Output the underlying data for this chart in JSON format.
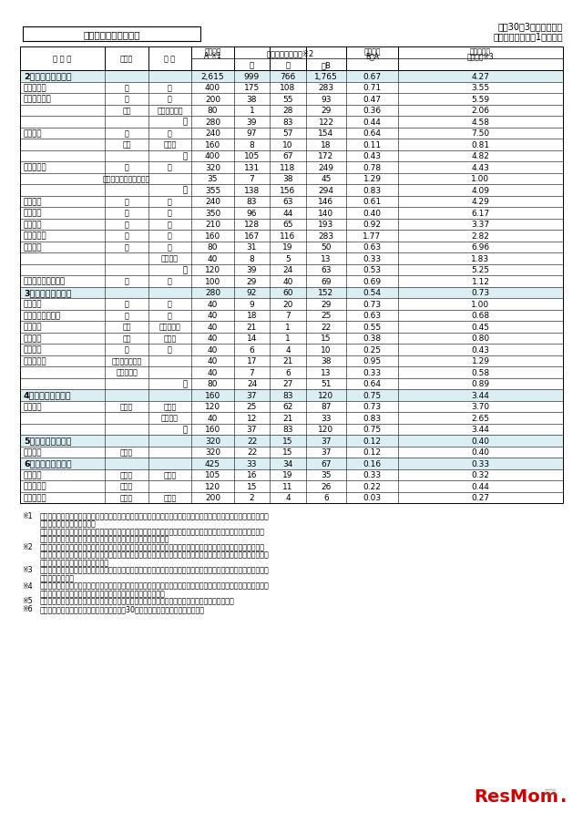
{
  "title_box": "学校・学科別志望状況",
  "top_right_line1": "平成30年3月卒業予定者",
  "top_right_line2": "第２次志望調査（1月実施）",
  "rows": [
    {
      "type": "section",
      "num": "2",
      "label": "私立高校全日制",
      "cols": [
        "2,615",
        "999",
        "766",
        "1,765",
        "0.67",
        "4.27"
      ]
    },
    {
      "type": "data",
      "school": "比　叡　山",
      "dept": "普",
      "course": "通",
      "cols": [
        "400",
        "175",
        "108",
        "283",
        "0.71",
        "3.55"
      ]
    },
    {
      "type": "data",
      "school": "滋賀短大附属",
      "dept": "普",
      "course": "通",
      "cols": [
        "200",
        "38",
        "55",
        "93",
        "0.47",
        "5.59"
      ]
    },
    {
      "type": "data",
      "school": "",
      "dept": "家庭",
      "course": "生活デザイン",
      "cols": [
        "80",
        "1",
        "28",
        "29",
        "0.36",
        "2.06"
      ]
    },
    {
      "type": "subtotal",
      "school": "",
      "dept": "",
      "course": "計",
      "cols": [
        "280",
        "39",
        "83",
        "122",
        "0.44",
        "4.58"
      ]
    },
    {
      "type": "data",
      "school": "近　　江",
      "dept": "普",
      "course": "通",
      "cols": [
        "240",
        "97",
        "57",
        "154",
        "0.64",
        "7.50"
      ]
    },
    {
      "type": "data",
      "school": "",
      "dept": "商業",
      "course": "商　業",
      "cols": [
        "160",
        "8",
        "10",
        "18",
        "0.11",
        "0.81"
      ]
    },
    {
      "type": "subtotal",
      "school": "",
      "dept": "",
      "course": "計",
      "cols": [
        "400",
        "105",
        "67",
        "172",
        "0.43",
        "4.82"
      ]
    },
    {
      "type": "data",
      "school": "近江兄弟社",
      "dept": "普",
      "course": "通",
      "cols": [
        "320",
        "131",
        "118",
        "249",
        "0.78",
        "4.43"
      ]
    },
    {
      "type": "data",
      "school": "",
      "dept": "国際コミュニケーション",
      "course": "",
      "cols": [
        "35",
        "7",
        "38",
        "45",
        "1.29",
        "1.00"
      ]
    },
    {
      "type": "subtotal",
      "school": "",
      "dept": "",
      "course": "計",
      "cols": [
        "355",
        "138",
        "156",
        "294",
        "0.83",
        "4.09"
      ]
    },
    {
      "type": "data",
      "school": "滋賀学園",
      "dept": "普",
      "course": "通",
      "cols": [
        "240",
        "83",
        "63",
        "146",
        "0.61",
        "4.29"
      ]
    },
    {
      "type": "data",
      "school": "光　　泉",
      "dept": "普",
      "course": "通",
      "cols": [
        "350",
        "96",
        "44",
        "140",
        "0.40",
        "6.17"
      ]
    },
    {
      "type": "data",
      "school": "彦根総合",
      "dept": "総",
      "course": "合",
      "cols": [
        "210",
        "128",
        "65",
        "193",
        "0.92",
        "3.37"
      ]
    },
    {
      "type": "data",
      "school": "立命館守山",
      "dept": "普",
      "course": "通",
      "cols": [
        "160",
        "167",
        "116",
        "283",
        "1.77",
        "2.82"
      ]
    },
    {
      "type": "data",
      "school": "綾　　羽",
      "dept": "普",
      "course": "通",
      "cols": [
        "80",
        "31",
        "19",
        "50",
        "0.63",
        "6.96"
      ]
    },
    {
      "type": "data",
      "school": "",
      "dept": "",
      "course": "介護福祉",
      "cols": [
        "40",
        "8",
        "5",
        "13",
        "0.33",
        "1.83"
      ]
    },
    {
      "type": "subtotal",
      "school": "",
      "dept": "",
      "course": "計",
      "cols": [
        "120",
        "39",
        "24",
        "63",
        "0.53",
        "5.25"
      ]
    },
    {
      "type": "data",
      "school": "幸福の科学学園関西",
      "dept": "普",
      "course": "通",
      "cols": [
        "100",
        "29",
        "40",
        "69",
        "0.69",
        "1.12"
      ]
    },
    {
      "type": "section",
      "num": "3",
      "label": "県立高校定時制",
      "cols": [
        "280",
        "92",
        "60",
        "152",
        "0.54",
        "0.73"
      ]
    },
    {
      "type": "data",
      "school": "大津清陵",
      "dept": "普",
      "course": "通",
      "cols": [
        "40",
        "9",
        "20",
        "29",
        "0.73",
        "1.00"
      ]
    },
    {
      "type": "data",
      "school": "大津清陵馬場分校",
      "dept": "普",
      "course": "通",
      "cols": [
        "40",
        "18",
        "7",
        "25",
        "0.63",
        "0.68"
      ]
    },
    {
      "type": "data",
      "school": "瀬田工業",
      "dept": "工業",
      "course": "機械・電気",
      "cols": [
        "40",
        "21",
        "1",
        "22",
        "0.55",
        "0.45"
      ]
    },
    {
      "type": "data",
      "school": "彦根工業",
      "dept": "工業",
      "course": "機　械",
      "cols": [
        "40",
        "14",
        "1",
        "15",
        "0.38",
        "0.80"
      ]
    },
    {
      "type": "data",
      "school": "長浜北星",
      "dept": "総",
      "course": "合",
      "cols": [
        "40",
        "6",
        "4",
        "10",
        "0.25",
        "0.43"
      ]
    },
    {
      "type": "data",
      "school": "能　登　川",
      "dept": "普通［昼　間］",
      "course": "",
      "cols": [
        "40",
        "17",
        "21",
        "38",
        "0.95",
        "1.29"
      ]
    },
    {
      "type": "data",
      "school": "",
      "dept": "［夜　間］",
      "course": "",
      "cols": [
        "40",
        "7",
        "6",
        "13",
        "0.33",
        "0.58"
      ]
    },
    {
      "type": "subtotal",
      "school": "",
      "dept": "",
      "course": "計",
      "cols": [
        "80",
        "24",
        "27",
        "51",
        "0.64",
        "0.89"
      ]
    },
    {
      "type": "section",
      "num": "4",
      "label": "私立高校定時制",
      "cols": [
        "160",
        "37",
        "83",
        "120",
        "0.75",
        "3.44"
      ]
    },
    {
      "type": "data",
      "school": "綾　　羽",
      "dept": "定時制",
      "course": "普　通",
      "cols": [
        "120",
        "25",
        "62",
        "87",
        "0.73",
        "3.70"
      ]
    },
    {
      "type": "data",
      "school": "",
      "dept": "",
      "course": "食物調理",
      "cols": [
        "40",
        "12",
        "21",
        "33",
        "0.83",
        "2.65"
      ]
    },
    {
      "type": "subtotal",
      "school": "",
      "dept": "",
      "course": "計",
      "cols": [
        "160",
        "37",
        "83",
        "120",
        "0.75",
        "3.44"
      ]
    },
    {
      "type": "section",
      "num": "5",
      "label": "県立高校通信制",
      "cols": [
        "320",
        "22",
        "15",
        "37",
        "0.12",
        "0.40"
      ]
    },
    {
      "type": "data",
      "school": "大津清陵",
      "dept": "普　通",
      "course": "",
      "cols": [
        "320",
        "22",
        "15",
        "37",
        "0.12",
        "0.40"
      ]
    },
    {
      "type": "section",
      "num": "6",
      "label": "私立高校通信制",
      "cols": [
        "425",
        "33",
        "34",
        "67",
        "0.16",
        "0.33"
      ]
    },
    {
      "type": "data",
      "school": "綾　　羽",
      "dept": "通信制",
      "course": "普　通",
      "cols": [
        "105",
        "16",
        "19",
        "35",
        "0.33",
        "0.32"
      ]
    },
    {
      "type": "data",
      "school": "司　学　館",
      "dept": "普　通",
      "course": "",
      "cols": [
        "120",
        "15",
        "11",
        "26",
        "0.22",
        "0.44"
      ]
    },
    {
      "type": "data",
      "school": "ＥＣＣ学園",
      "dept": "通信制",
      "course": "総　合",
      "cols": [
        "200",
        "2",
        "4",
        "6",
        "0.03",
        "0.27"
      ]
    }
  ],
  "footnotes": [
    [
      "※1",
      "募集定員は、入学者選抜の対象となる定員のみ記載しており、中高一貫教育校の併設中学校から併設高校への進学者に"
    ],
    [
      "",
      "かかる定員は除いています。"
    ],
    [
      "",
      "中高一貫教育校　　県立守山中学校・高等学校　　　県立水口東中学校・高等学校　　　県立河瀬中学校・高等学校"
    ],
    [
      "",
      "　　滋賀学園中学校・高等学校　　　立命館守山中学校・高等学校"
    ],
    [
      "※2",
      "志望数とは、県内の中学校および特別支援学校中学部を卒業する予定で、県内の高等学校を志望する生徒（一般選抜"
    ],
    [
      "",
      "・推薦選抜・特色選抜を問わない。中高一貫教育校への内部進学者は除く。）の数のことであり、過年度卒業者や県外"
    ],
    [
      "",
      "からの志望者は含まれていません。"
    ],
    [
      "※3",
      "県立学校の前年度確定出願倍率は、一般選抜学力検査の確定出願倍率であり、推薦選抜および特色選抜の出願状況は反"
    ],
    [
      "",
      "映していません。"
    ],
    [
      "※4",
      "膳所高校、草津東高校、栗東高校、米原高校の４校は、前年度において学科単位の出願ではなく、学校単位の出願を実"
    ],
    [
      "",
      "施したため、前年度の出願倍率は学校全体の表示としています。"
    ],
    [
      "※5",
      "大津清陵高校定時制総合部の募集定員・志望者数には、転・編入学者定員・志望者数を含みません。"
    ],
    [
      "※6",
      "滋賀短大附属高校の生活デザイン科は、平成30年度より人間総合科から名称変更。"
    ]
  ],
  "section_bg": "#dbeef3",
  "page_bg": "#f5f5f5"
}
